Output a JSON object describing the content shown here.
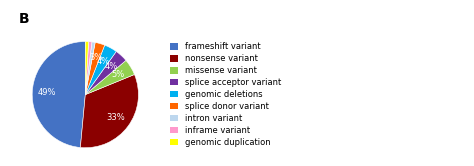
{
  "chart_data": {
    "type": "pie",
    "title": "B",
    "categories": [
      "frameshift variant",
      "nonsense variant",
      "missense variant",
      "splice acceptor variant",
      "genomic deletions",
      "splice donor variant",
      "intron variant",
      "inframe variant",
      "genomic duplication"
    ],
    "values": [
      49,
      33,
      5,
      4,
      4,
      3,
      1,
      1,
      1
    ],
    "value_labels": [
      "49%",
      "33%",
      "5%",
      "4%",
      "4%",
      "3%",
      null,
      null,
      null
    ],
    "colors": [
      "#4472C4",
      "#8B0000",
      "#92D050",
      "#7030A0",
      "#00B0F0",
      "#FF6600",
      "#BDD7EE",
      "#FF99CC",
      "#FFFF00"
    ],
    "data_labels": true,
    "legend": "center left"
  }
}
